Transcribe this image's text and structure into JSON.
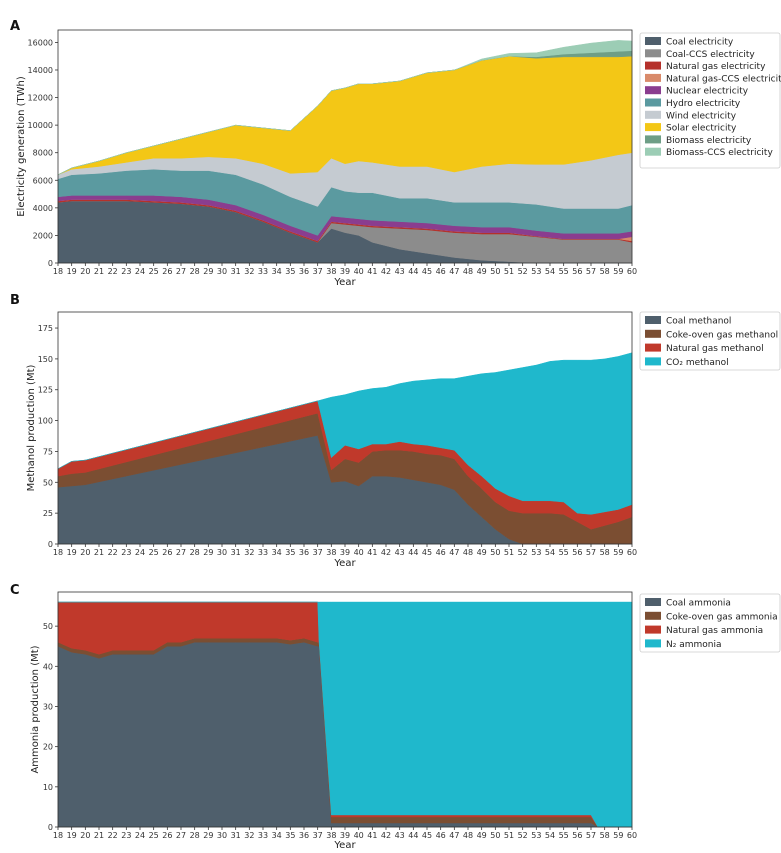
{
  "chart_data": [
    {
      "panel": "A",
      "type": "area",
      "stacked": true,
      "xlabel": "Year",
      "ylabel": "Electricity generation (TWh)",
      "ylim": [
        0,
        16900
      ],
      "yticks": [
        0,
        2000,
        4000,
        6000,
        8000,
        10000,
        12000,
        14000,
        16000
      ],
      "x_ticks": [
        "18",
        "19",
        "20",
        "21",
        "22",
        "23",
        "24",
        "25",
        "26",
        "27",
        "28",
        "29",
        "30",
        "31",
        "32",
        "33",
        "34",
        "35",
        "36",
        "37",
        "38",
        "39",
        "40",
        "41",
        "42",
        "43",
        "44",
        "45",
        "46",
        "47",
        "48",
        "49",
        "50",
        "51",
        "52",
        "53",
        "54",
        "55",
        "56",
        "57",
        "58",
        "59",
        "60"
      ],
      "x": [
        18,
        19,
        21,
        23,
        25,
        27,
        29,
        31,
        33,
        35,
        37,
        38,
        39,
        40,
        41,
        43,
        45,
        47,
        49,
        51,
        53,
        55,
        57,
        59,
        60
      ],
      "legend": "right",
      "series": [
        {
          "name": "Coal electricity",
          "color": "#4f5f6c",
          "values": [
            4400,
            4500,
            4500,
            4500,
            4400,
            4300,
            4100,
            3700,
            3000,
            2200,
            1500,
            2500,
            2200,
            2000,
            1500,
            1000,
            700,
            400,
            200,
            100,
            0,
            0,
            0,
            0,
            0
          ]
        },
        {
          "name": "Coal-CCS electricity",
          "color": "#8c8c8c",
          "values": [
            0,
            0,
            0,
            0,
            0,
            0,
            0,
            0,
            0,
            0,
            0,
            400,
            600,
            700,
            1100,
            1500,
            1700,
            1800,
            1900,
            2000,
            1900,
            1700,
            1700,
            1700,
            1500
          ]
        },
        {
          "name": "Natural gas electricity",
          "color": "#b5312b",
          "values": [
            100,
            100,
            100,
            100,
            100,
            100,
            100,
            100,
            100,
            100,
            100,
            100,
            100,
            100,
            100,
            100,
            100,
            100,
            100,
            100,
            50,
            50,
            50,
            50,
            100
          ]
        },
        {
          "name": "Natural gas-CCS electricity",
          "color": "#d98a6a",
          "values": [
            0,
            0,
            0,
            0,
            0,
            0,
            0,
            0,
            0,
            0,
            0,
            0,
            0,
            0,
            0,
            0,
            0,
            0,
            0,
            0,
            0,
            0,
            0,
            0,
            300
          ]
        },
        {
          "name": "Nuclear electricity",
          "color": "#8a3d8f",
          "values": [
            300,
            300,
            300,
            300,
            400,
            400,
            400,
            400,
            400,
            400,
            400,
            400,
            400,
            400,
            400,
            400,
            400,
            400,
            400,
            400,
            400,
            400,
            400,
            400,
            400
          ]
        },
        {
          "name": "Hydro electricity",
          "color": "#5b9aa0",
          "values": [
            1300,
            1500,
            1600,
            1800,
            1900,
            1900,
            2100,
            2200,
            2200,
            2100,
            2100,
            2100,
            1900,
            1900,
            2000,
            1700,
            1800,
            1700,
            1800,
            1800,
            1900,
            1800,
            1800,
            1800,
            1900
          ]
        },
        {
          "name": "Wind electricity",
          "color": "#c5cbd1",
          "values": [
            300,
            400,
            500,
            600,
            800,
            900,
            1000,
            1200,
            1500,
            1700,
            2500,
            2100,
            2000,
            2300,
            2200,
            2300,
            2300,
            2200,
            2600,
            2800,
            2900,
            3200,
            3500,
            3900,
            3800
          ]
        },
        {
          "name": "Solar electricity",
          "color": "#f3c716",
          "values": [
            0,
            100,
            400,
            700,
            900,
            1400,
            1800,
            2400,
            2600,
            3100,
            4800,
            4900,
            5500,
            5600,
            5700,
            6200,
            6800,
            7400,
            7700,
            7800,
            7700,
            7800,
            7500,
            7100,
            7000
          ]
        },
        {
          "name": "Biomass electricity",
          "color": "#6e9e86",
          "values": [
            0,
            0,
            0,
            0,
            0,
            0,
            0,
            0,
            0,
            0,
            0,
            0,
            0,
            0,
            0,
            0,
            0,
            0,
            0,
            0,
            100,
            200,
            300,
            400,
            400
          ]
        },
        {
          "name": "Biomass-CCS electricity",
          "color": "#9ccdb5",
          "values": [
            0,
            0,
            0,
            0,
            0,
            0,
            0,
            0,
            0,
            0,
            0,
            0,
            0,
            0,
            0,
            0,
            0,
            0,
            100,
            200,
            300,
            500,
            700,
            800,
            700
          ]
        }
      ]
    },
    {
      "panel": "B",
      "type": "area",
      "stacked": true,
      "xlabel": "Year",
      "ylabel": "Methanol production (Mt)",
      "ylim": [
        0,
        188
      ],
      "yticks": [
        0,
        25,
        50,
        75,
        100,
        125,
        150,
        175
      ],
      "x_ticks": [
        "18",
        "19",
        "20",
        "21",
        "22",
        "23",
        "24",
        "25",
        "26",
        "27",
        "28",
        "29",
        "30",
        "31",
        "32",
        "33",
        "34",
        "35",
        "36",
        "37",
        "38",
        "39",
        "40",
        "41",
        "42",
        "43",
        "44",
        "45",
        "46",
        "47",
        "48",
        "49",
        "50",
        "51",
        "52",
        "53",
        "54",
        "55",
        "56",
        "57",
        "58",
        "59",
        "60"
      ],
      "x": [
        18,
        19,
        20,
        37,
        38,
        39,
        40,
        41,
        42,
        43,
        44,
        45,
        46,
        47,
        48,
        49,
        50,
        51,
        52,
        53,
        54,
        55,
        56,
        57,
        58,
        59,
        60
      ],
      "legend": "right",
      "series": [
        {
          "name": "Coal methanol",
          "color": "#4f5f6c",
          "values": [
            46,
            47,
            48,
            88,
            50,
            51,
            47,
            55,
            55,
            54,
            52,
            50,
            48,
            44,
            32,
            22,
            12,
            4,
            0,
            0,
            0,
            0,
            0,
            0,
            0,
            0,
            0
          ]
        },
        {
          "name": "Coke-oven gas methanol",
          "color": "#7b4e32",
          "values": [
            9,
            10,
            10,
            18,
            10,
            18,
            19,
            20,
            21,
            22,
            23,
            23,
            24,
            25,
            23,
            23,
            22,
            23,
            25,
            25,
            25,
            24,
            18,
            12,
            15,
            18,
            22
          ]
        },
        {
          "name": "Natural gas methanol",
          "color": "#c0392b",
          "values": [
            6,
            10,
            10,
            10,
            10,
            11,
            11,
            6,
            5,
            7,
            6,
            7,
            6,
            7,
            9,
            10,
            11,
            12,
            10,
            10,
            10,
            10,
            7,
            12,
            11,
            10,
            10
          ]
        },
        {
          "name": "CO₂ methanol",
          "color": "#1fb8cc",
          "values": [
            0,
            0,
            0,
            0,
            49,
            41,
            47,
            45,
            46,
            47,
            51,
            53,
            56,
            58,
            72,
            83,
            94,
            102,
            108,
            110,
            113,
            115,
            124,
            125,
            124,
            124,
            123
          ]
        }
      ]
    },
    {
      "panel": "C",
      "type": "area",
      "stacked": true,
      "xlabel": "Year",
      "ylabel": "Ammonia production (Mt)",
      "ylim": [
        0,
        58.5
      ],
      "yticks": [
        0,
        10,
        20,
        30,
        40,
        50
      ],
      "x_ticks": [
        "18",
        "19",
        "20",
        "21",
        "22",
        "23",
        "24",
        "25",
        "26",
        "27",
        "28",
        "29",
        "30",
        "31",
        "32",
        "33",
        "34",
        "35",
        "36",
        "37",
        "38",
        "39",
        "40",
        "41",
        "42",
        "43",
        "44",
        "45",
        "46",
        "47",
        "48",
        "49",
        "50",
        "51",
        "52",
        "53",
        "54",
        "55",
        "56",
        "57",
        "58",
        "59",
        "60"
      ],
      "x": [
        18,
        19,
        20,
        21,
        22,
        23,
        24,
        25,
        26,
        27,
        28,
        29,
        30,
        31,
        32,
        33,
        34,
        35,
        36,
        37,
        37.1,
        38,
        57,
        57.5,
        58,
        60
      ],
      "legend": "right",
      "series": [
        {
          "name": "Coal ammonia",
          "color": "#4f5f6c",
          "values": [
            45,
            43.5,
            43,
            42,
            43,
            43,
            43,
            43,
            45,
            45,
            46,
            46,
            46,
            46,
            46,
            46,
            46,
            45.5,
            46,
            45,
            45,
            1,
            1,
            0,
            0,
            0
          ]
        },
        {
          "name": "Coke-oven gas ammonia",
          "color": "#7b4e32",
          "values": [
            1,
            1,
            1,
            1,
            1,
            1,
            1,
            1,
            1,
            1,
            1,
            1,
            1,
            1,
            1,
            1,
            1,
            1,
            1,
            1,
            1,
            1.5,
            1.5,
            0,
            0,
            0
          ]
        },
        {
          "name": "Natural gas ammonia",
          "color": "#c0392b",
          "values": [
            10,
            11.5,
            12,
            13,
            12,
            12,
            12,
            12,
            10,
            10,
            9,
            9,
            9,
            9,
            9,
            9,
            9,
            9.5,
            9,
            10,
            0,
            0.5,
            0.5,
            0,
            0,
            0
          ]
        },
        {
          "name": "N₂ ammonia",
          "color": "#1fb8cc",
          "values": [
            0,
            0,
            0,
            0,
            0,
            0,
            0,
            0,
            0,
            0,
            0,
            0,
            0,
            0,
            0,
            0,
            0,
            0,
            0,
            0,
            10,
            53,
            53,
            56,
            56,
            56
          ]
        }
      ]
    }
  ]
}
